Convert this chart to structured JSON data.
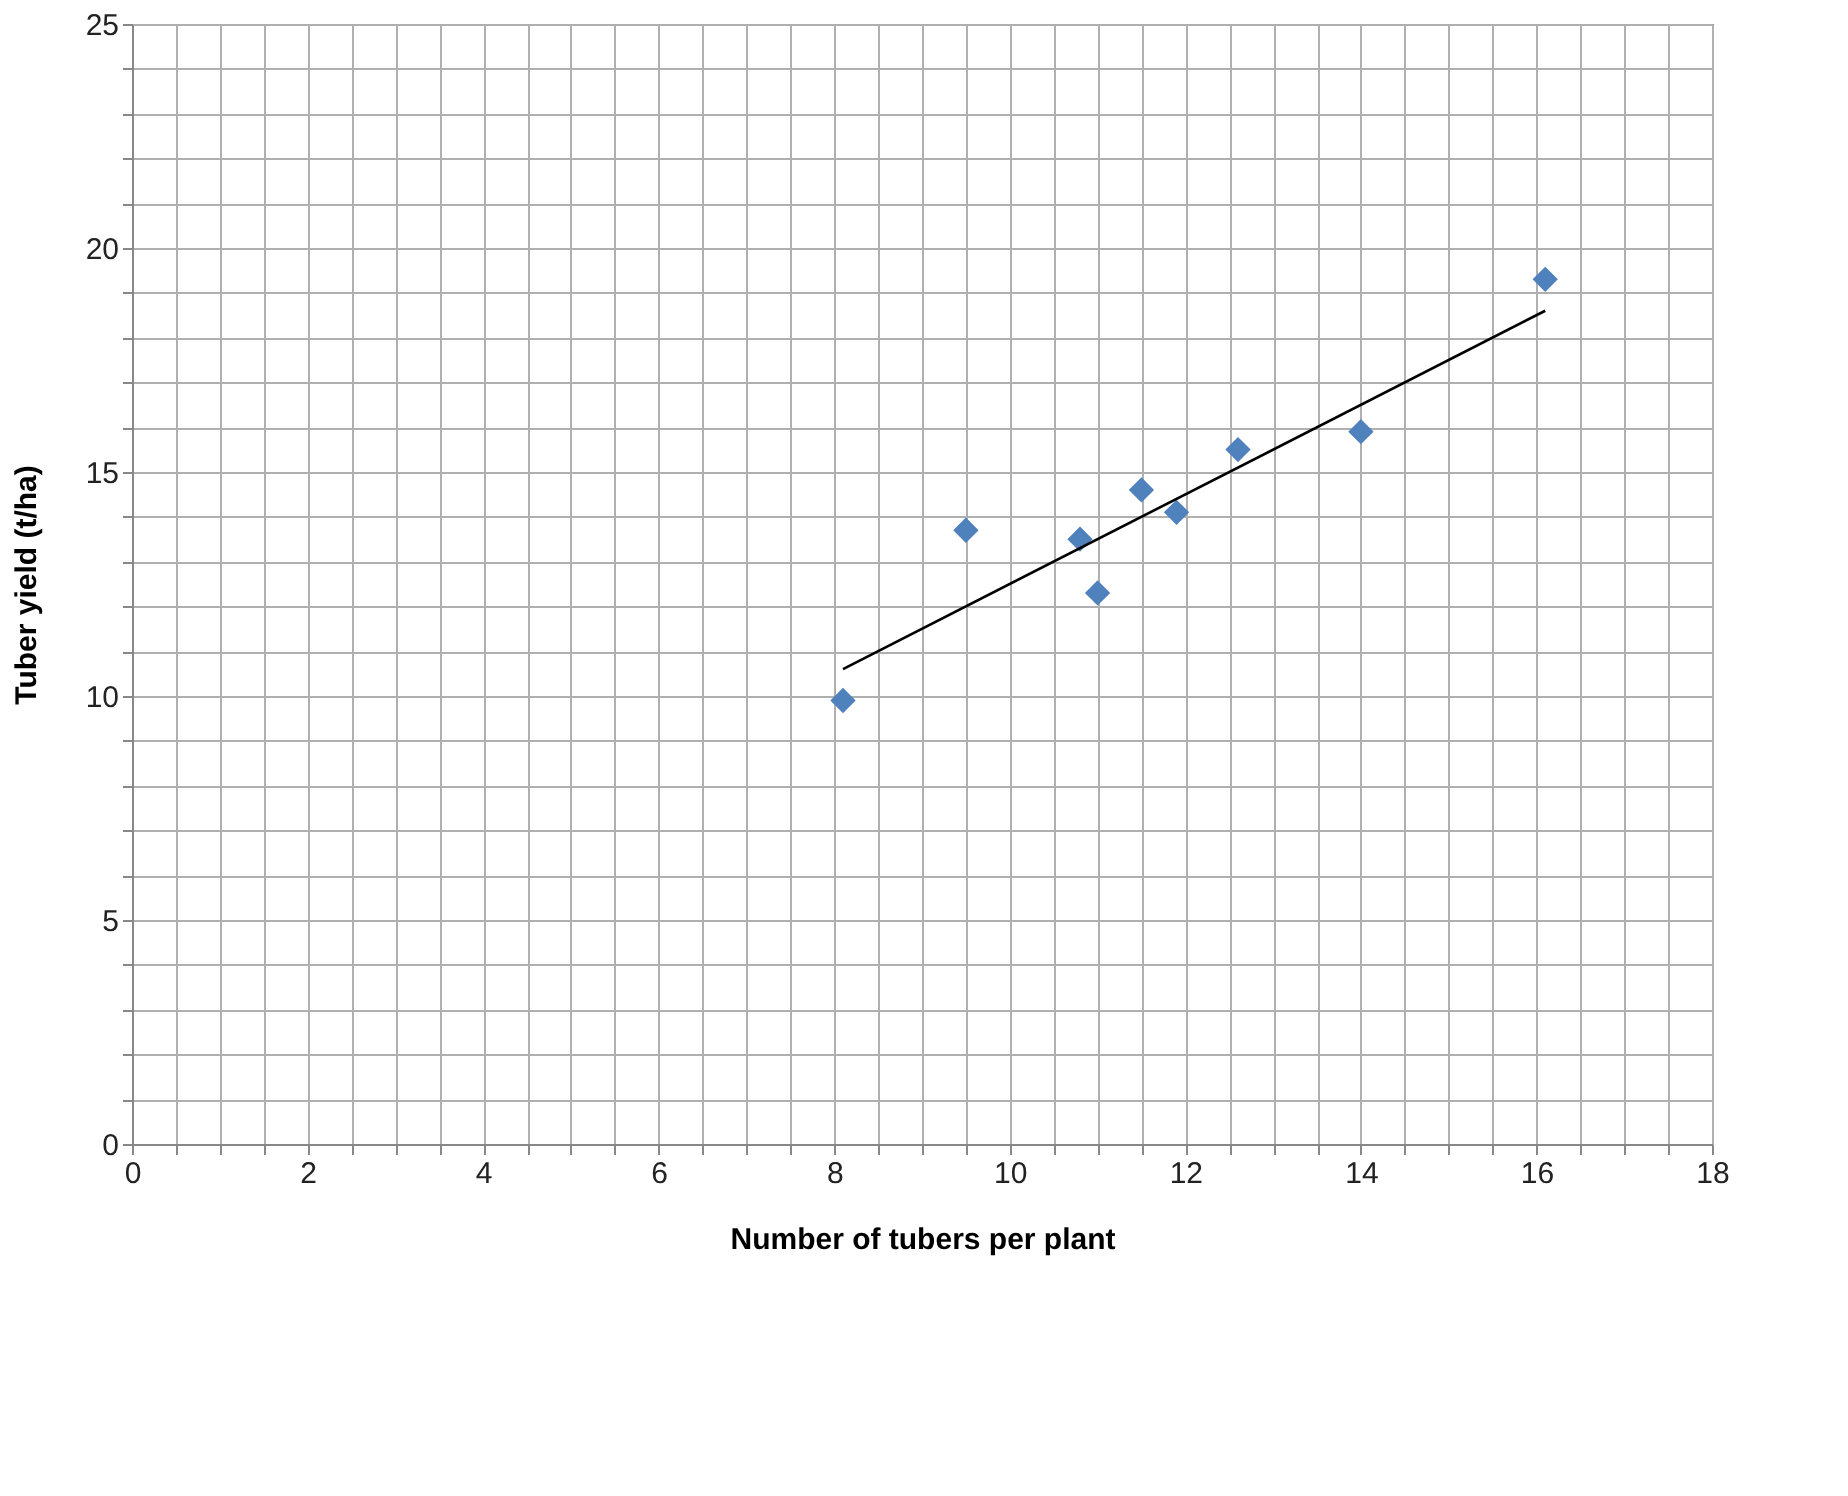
{
  "chart_data": {
    "type": "scatter",
    "xlabel": "Number of tubers per plant",
    "ylabel": "Tuber yield (t/ha)",
    "series": [
      {
        "color": "#4f81bd",
        "marker": "diamond",
        "x": [
          8.1,
          9.5,
          10.8,
          11.0,
          11.5,
          11.9,
          12.6,
          14.0,
          16.1
        ],
        "values": [
          9.9,
          13.7,
          13.5,
          12.3,
          14.6,
          14.1,
          15.5,
          15.9,
          19.3
        ]
      },
      {
        "type": "line",
        "color": "#000000",
        "marker": "none",
        "line_style": "solid",
        "x": [
          8.1,
          16.1
        ],
        "values": [
          10.6,
          18.6
        ]
      }
    ],
    "xlim": [
      0,
      18
    ],
    "ylim": [
      0,
      25
    ],
    "xticks": [
      0,
      {
        "value": 0.5,
        "label": null
      },
      {
        "value": 1,
        "label": null
      },
      {
        "value": 1.5,
        "label": null
      },
      2,
      {
        "value": 2.5,
        "label": null
      },
      {
        "value": 3,
        "label": null
      },
      {
        "value": 3.5,
        "label": null
      },
      4,
      {
        "value": 4.5,
        "label": null
      },
      {
        "value": 5,
        "label": null
      },
      {
        "value": 5.5,
        "label": null
      },
      6,
      {
        "value": 6.5,
        "label": null
      },
      {
        "value": 7,
        "label": null
      },
      {
        "value": 7.5,
        "label": null
      },
      8,
      {
        "value": 8.5,
        "label": null
      },
      {
        "value": 9,
        "label": null
      },
      {
        "value": 9.5,
        "label": null
      },
      10,
      {
        "value": 10.5,
        "label": null
      },
      {
        "value": 11,
        "label": null
      },
      {
        "value": 11.5,
        "label": null
      },
      12,
      {
        "value": 12.5,
        "label": null
      },
      {
        "value": 13,
        "label": null
      },
      {
        "value": 13.5,
        "label": null
      },
      14,
      {
        "value": 14.5,
        "label": null
      },
      {
        "value": 15,
        "label": null
      },
      {
        "value": 15.5,
        "label": null
      },
      16,
      {
        "value": 16.5,
        "label": null
      },
      {
        "value": 17,
        "label": null
      },
      {
        "value": 17.5,
        "label": null
      },
      18
    ],
    "yticks": [
      0,
      {
        "value": 1,
        "label": null
      },
      {
        "value": 2,
        "label": null
      },
      {
        "value": 3,
        "label": null
      },
      {
        "value": 4,
        "label": null
      },
      5,
      {
        "value": 6,
        "label": null
      },
      {
        "value": 7,
        "label": null
      },
      {
        "value": 8,
        "label": null
      },
      {
        "value": 9,
        "label": null
      },
      10,
      {
        "value": 11,
        "label": null
      },
      {
        "value": 12,
        "label": null
      },
      {
        "value": 13,
        "label": null
      },
      {
        "value": 14,
        "label": null
      },
      15,
      {
        "value": 16,
        "label": null
      },
      {
        "value": 17,
        "label": null
      },
      {
        "value": 18,
        "label": null
      },
      {
        "value": 19,
        "label": null
      },
      20,
      {
        "value": 21,
        "label": null
      },
      {
        "value": 22,
        "label": null
      },
      {
        "value": 23,
        "label": null
      },
      {
        "value": 24,
        "label": null
      },
      25
    ],
    "grid": true
  }
}
